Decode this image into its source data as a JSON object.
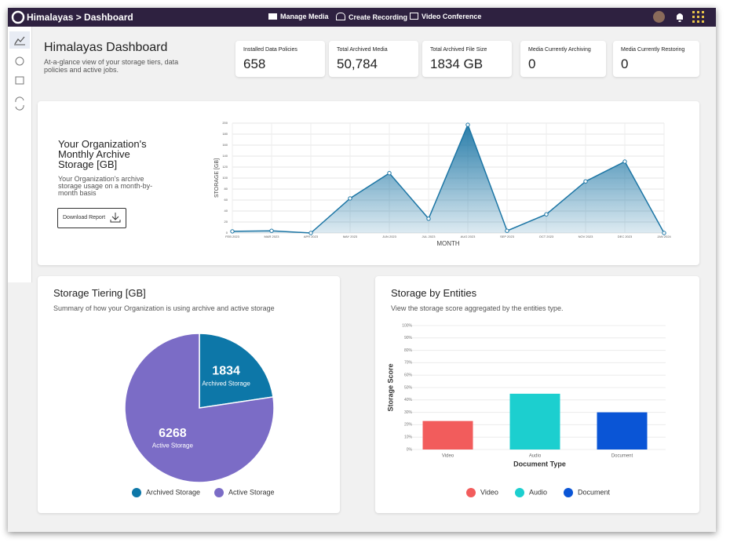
{
  "header": {
    "title": "Himalayas > Dashboard",
    "nav": [
      "Manage Media",
      "Create Recording",
      "Video Conference"
    ]
  },
  "dashboard": {
    "title": "Himalayas Dashboard",
    "subtitle": "At-a-glance view of your storage tiers, data policies and active jobs."
  },
  "stats": [
    {
      "label": "Installed Data Policies",
      "value": "658"
    },
    {
      "label": "Total Archived Media",
      "value": "50,784"
    },
    {
      "label": "Total Archived File Size",
      "value": "1834 GB"
    },
    {
      "label": "Media Currently Archiving",
      "value": "0"
    },
    {
      "label": "Media Currently Restoring",
      "value": "0"
    }
  ],
  "archive_card": {
    "title": "Your Organization's Monthly Archive Storage [GB]",
    "description": "Your Organization's archive storage usage on a month-by-month basis",
    "button": "Download Report"
  },
  "chart_data": [
    {
      "type": "area",
      "x_label": "MONTH",
      "y_label": "STORAGE [GB]",
      "color": "#1d76a5",
      "grid": true,
      "categories": [
        "FEB 2023",
        "MAR 2023",
        "APR 2023",
        "MAY 2023",
        "JUN 2023",
        "JUL 2023",
        "AUG 2023",
        "SEP 2023",
        "OCT 2023",
        "NOV 2023",
        "DEC 2023",
        "JAN 2024"
      ],
      "values": [
        3,
        4,
        0,
        63,
        109,
        26,
        197,
        4,
        34,
        94,
        130,
        0
      ],
      "ylim": [
        0,
        200
      ],
      "yticks": [
        0,
        20,
        40,
        60,
        80,
        100,
        120,
        140,
        160,
        180,
        200
      ]
    },
    {
      "type": "pie",
      "title": "Storage Tiering [GB]",
      "subtitle": "Summary of how your Organization is using archive and active storage",
      "categories": [
        "Archived Storage",
        "Active Storage"
      ],
      "values": [
        1834,
        6268
      ],
      "colors": [
        "#0d77a8",
        "#7b6cc6"
      ],
      "legend": "bottom"
    },
    {
      "type": "bar",
      "title": "Storage by Entities",
      "subtitle": "View the storage score aggregated by the entities type.",
      "x_label": "Document Type",
      "y_label": "Storage Score",
      "categories": [
        "Video",
        "Audio",
        "Document"
      ],
      "values": [
        23,
        45,
        30
      ],
      "colors": [
        "#f25c5c",
        "#1ccfcf",
        "#0a55d6"
      ],
      "grid": true,
      "legend": "bottom",
      "ylim": [
        0,
        100
      ],
      "yticks": [
        {
          "value": 0,
          "label": "0%"
        },
        {
          "value": 10,
          "label": "10%"
        },
        {
          "value": 20,
          "label": "20%"
        },
        {
          "value": 30,
          "label": "30%"
        },
        {
          "value": 40,
          "label": "40%"
        },
        {
          "value": 50,
          "label": "50%"
        },
        {
          "value": 60,
          "label": "60%"
        },
        {
          "value": 70,
          "label": "70%"
        },
        {
          "value": 80,
          "label": "80%"
        },
        {
          "value": 90,
          "label": "90%"
        },
        {
          "value": 100,
          "label": "100%"
        }
      ]
    }
  ]
}
